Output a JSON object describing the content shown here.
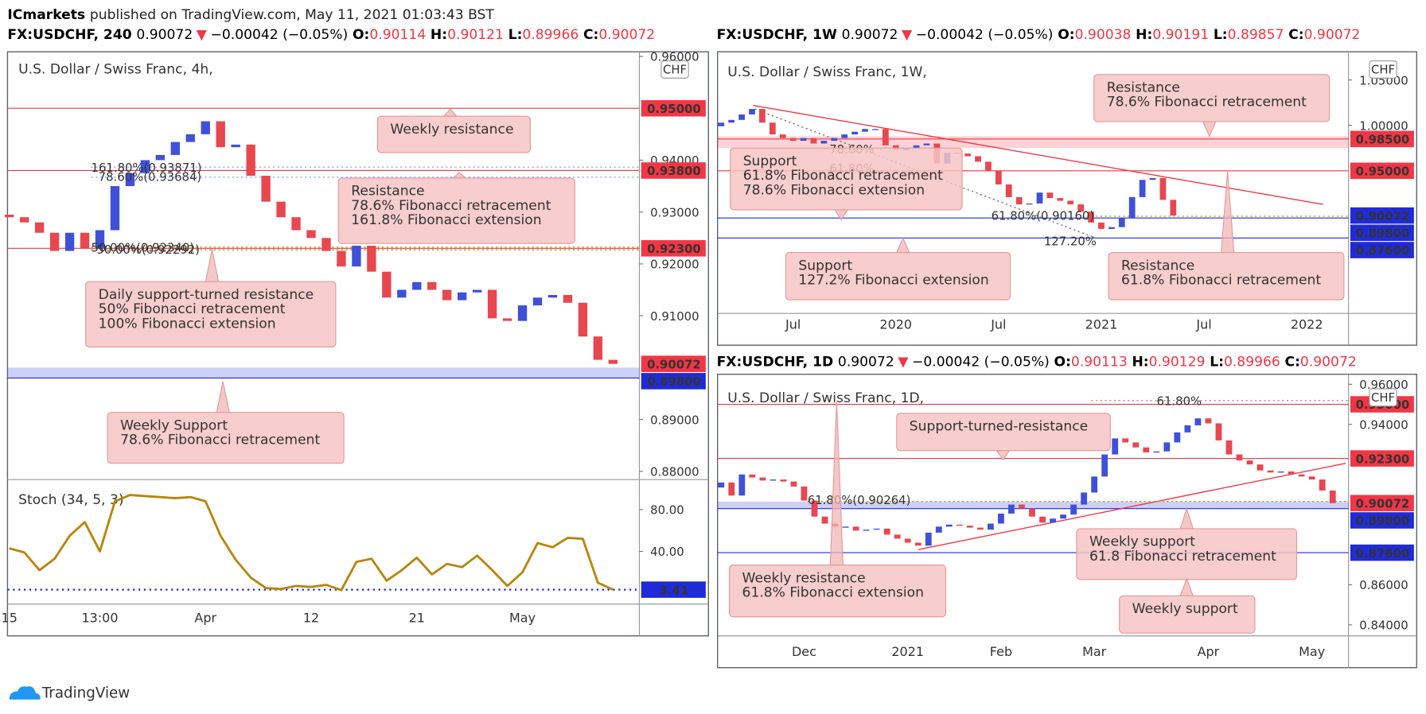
{
  "page": {
    "publisher": "ICmarkets",
    "published": "published on TradingView.com, May 11, 2021 01:03:43 BST",
    "logo": "TradingView"
  },
  "chart_data": [
    {
      "type": "candlestick",
      "header": {
        "symbol": "FX:USDCHF, 240",
        "last": "0.90072",
        "arrow": "▼",
        "change": "−0.00042 (−0.05%)",
        "ohlc": [
          {
            "key": "O:",
            "value": "0.90114"
          },
          {
            "key": "H:",
            "value": "0.90121"
          },
          {
            "key": "L:",
            "value": "0.89966"
          },
          {
            "key": "C:",
            "value": "0.90072"
          }
        ]
      },
      "title": "U.S. Dollar / Swiss Franc, 4h,",
      "currency": "CHF",
      "categories": [
        "15",
        null,
        null,
        null,
        null,
        null,
        "13:00",
        null,
        null,
        null,
        null,
        null,
        null,
        "Apr",
        null,
        null,
        null,
        null,
        null,
        null,
        "12",
        null,
        null,
        null,
        null,
        null,
        null,
        "21",
        null,
        null,
        null,
        null,
        null,
        null,
        "May",
        null,
        null,
        null,
        null,
        null,
        null
      ],
      "open": [
        0.9295,
        0.929,
        0.928,
        0.926,
        0.9225,
        0.926,
        0.923,
        0.9265,
        0.935,
        0.9375,
        0.94,
        0.941,
        0.9435,
        0.945,
        0.9475,
        0.9425,
        0.943,
        0.937,
        0.932,
        0.929,
        0.9265,
        0.925,
        0.9225,
        0.9195,
        0.9235,
        0.9185,
        0.9135,
        0.915,
        0.9165,
        0.915,
        0.913,
        0.9145,
        0.915,
        0.9095,
        0.909,
        0.912,
        0.9135,
        0.914,
        0.9125,
        0.906,
        0.9015
      ],
      "close": [
        0.929,
        0.928,
        0.926,
        0.9225,
        0.926,
        0.923,
        0.9265,
        0.935,
        0.9375,
        0.94,
        0.941,
        0.9435,
        0.945,
        0.9475,
        0.9425,
        0.943,
        0.937,
        0.932,
        0.929,
        0.9265,
        0.925,
        0.9225,
        0.9195,
        0.9235,
        0.9185,
        0.9135,
        0.915,
        0.9165,
        0.915,
        0.913,
        0.9145,
        0.915,
        0.9095,
        0.909,
        0.912,
        0.9135,
        0.914,
        0.9125,
        0.906,
        0.9015,
        0.90072
      ],
      "up_color": "#3f51d8",
      "down_color": "#e8474f",
      "ylim": [
        0.8784,
        0.9609
      ],
      "yticks": [
        {
          "value": 0.96,
          "label": "0.96000"
        },
        {
          "value": 0.94,
          "label": "0.94000"
        },
        {
          "value": 0.93,
          "label": "0.93000"
        },
        {
          "value": 0.92,
          "label": "0.92000"
        },
        {
          "value": 0.91,
          "label": "0.91000"
        },
        {
          "value": 0.89,
          "label": "0.89000"
        },
        {
          "value": 0.88,
          "label": "0.88000"
        }
      ],
      "zones": [
        {
          "from": 0.898,
          "to": 0.9,
          "color": "rgba(90,100,240,0.3)"
        }
      ],
      "levels": [
        {
          "value": 0.95,
          "label": "0.95000",
          "color": "#f23645",
          "line": "solid"
        },
        {
          "value": 0.938,
          "label": "0.93800",
          "color": "#f23645",
          "line": "solid"
        },
        {
          "value": 0.923,
          "label": "0.92300",
          "color": "#f23645",
          "line": "solid"
        },
        {
          "value": 0.90072,
          "label": "0.90072",
          "color": "#f23645",
          "line": "none"
        },
        {
          "value": 0.898,
          "label": "0.89800",
          "color": "#1f2bd6",
          "line": "solid"
        }
      ],
      "fib_labels": [
        {
          "text": "161.80%(0.93871)",
          "color": "#2962ff"
        },
        {
          "text": "78.60%(0.93684)",
          "color": "#2962ff"
        },
        {
          "text": "50.00%(0.92340)",
          "color": "#d4a017"
        },
        {
          "text": "50.00%(0.92292)",
          "color": "#b0901a"
        }
      ],
      "callouts": [
        {
          "lines": [
            "Weekly resistance"
          ]
        },
        {
          "lines": [
            "Resistance",
            "78.6% Fibonacci retracement",
            "161.8% Fibonacci extension"
          ]
        },
        {
          "lines": [
            "Daily support-turned resistance",
            "50% Fibonacci retracement",
            "100% Fibonacci extension"
          ]
        },
        {
          "lines": [
            "Weekly Support",
            "78.6% Fibonacci retracement"
          ]
        }
      ]
    },
    {
      "type": "line",
      "title": "Stoch (34, 5, 3)",
      "color": "#b8860b",
      "values": [
        43,
        39,
        22,
        33,
        55,
        68,
        40,
        88,
        94,
        93,
        92,
        91,
        92,
        88,
        55,
        32,
        15,
        5,
        4,
        7,
        6,
        8,
        3,
        30,
        33,
        12,
        22,
        34,
        18,
        28,
        25,
        36,
        22,
        7,
        20,
        48,
        44,
        53,
        52,
        10,
        3.41
      ],
      "ylim": [
        -10.4,
        108.7
      ],
      "yticks": [
        {
          "value": 80,
          "label": "80.00"
        },
        {
          "value": 40,
          "label": "40.00"
        }
      ],
      "levels": [
        {
          "value": 3.41,
          "color": "#1f2bd6",
          "line": "dotted"
        }
      ]
    },
    {
      "type": "candlestick",
      "header": {
        "symbol": "FX:USDCHF, 1W",
        "last": "0.90072",
        "arrow": "▼",
        "change": "−0.00042 (−0.05%)",
        "ohlc": [
          {
            "key": "O:",
            "value": "0.90038"
          },
          {
            "key": "H:",
            "value": "0.90191"
          },
          {
            "key": "L:",
            "value": "0.89857"
          },
          {
            "key": "C:",
            "value": "0.90072"
          }
        ]
      },
      "title": "U.S. Dollar / Swiss Franc, 1W,",
      "currency": "CHF",
      "categories": [
        null,
        null,
        null,
        null,
        null,
        null,
        null,
        "Jul",
        null,
        null,
        null,
        null,
        null,
        null,
        null,
        null,
        null,
        "2020",
        null,
        null,
        null,
        null,
        null,
        null,
        null,
        null,
        null,
        "Jul",
        null,
        null,
        null,
        null,
        null,
        null,
        null,
        null,
        null,
        "2021",
        null,
        null,
        null,
        null,
        null,
        null,
        null,
        null,
        null,
        "Jul",
        null,
        null,
        null,
        null,
        null,
        null,
        null,
        null,
        null,
        "2022",
        null,
        null
      ],
      "open": [
        0.999,
        1.003,
        1.006,
        1.012,
        1.018,
        1.003,
        0.99,
        0.986,
        0.983,
        0.986,
        0.98,
        0.983,
        0.986,
        0.99,
        0.993,
        0.996,
        0.996,
        0.978,
        0.973,
        0.975,
        0.978,
        0.98,
        0.958,
        0.97,
        0.969,
        0.966,
        0.96,
        0.95,
        0.935,
        0.921,
        0.913,
        0.914,
        0.926,
        0.92,
        0.917,
        0.913,
        0.905,
        0.893,
        0.886,
        0.888,
        0.898,
        0.921,
        0.94,
        0.942,
        0.918,
        null,
        null,
        null,
        null,
        null,
        null,
        null,
        null,
        null,
        null,
        null,
        null,
        null,
        null,
        null
      ],
      "close": [
        1.003,
        1.006,
        1.012,
        1.018,
        1.003,
        0.99,
        0.986,
        0.983,
        0.986,
        0.98,
        0.983,
        0.986,
        0.99,
        0.993,
        0.996,
        0.996,
        0.978,
        0.973,
        0.975,
        0.978,
        0.98,
        0.958,
        0.97,
        0.969,
        0.966,
        0.96,
        0.95,
        0.935,
        0.921,
        0.913,
        0.914,
        0.926,
        0.92,
        0.917,
        0.913,
        0.905,
        0.893,
        0.886,
        0.888,
        0.898,
        0.921,
        0.94,
        0.942,
        0.918,
        0.90072,
        null,
        null,
        null,
        null,
        null,
        null,
        null,
        null,
        null,
        null,
        null,
        null,
        null,
        null,
        null
      ],
      "up_color": "#3f51d8",
      "down_color": "#e8474f",
      "ylim": [
        0.793,
        1.081
      ],
      "yticks": [
        {
          "value": 1.05,
          "label": "1.05000"
        },
        {
          "value": 1.0,
          "label": "1.00000"
        }
      ],
      "zones": [
        {
          "from": 0.975,
          "to": 0.988,
          "color": "rgba(242,54,69,0.22)"
        }
      ],
      "levels": [
        {
          "value": 0.985,
          "label": "0.98500",
          "color": "#f23645",
          "line": "solid"
        },
        {
          "value": 0.95,
          "label": "0.95000",
          "color": "#f23645",
          "line": "solid"
        },
        {
          "value": 0.90072,
          "label": "0.90072",
          "color": "#1f2bd6",
          "line": "none"
        },
        {
          "value": 0.898,
          "label": "0.89800",
          "color": "#1f2bd6",
          "line": "solid"
        },
        {
          "value": 0.876,
          "label": "0.87600",
          "color": "#1f2bd6",
          "line": "solid"
        }
      ],
      "fib_labels": [
        {
          "text": "78.60%",
          "color": "#2962ff"
        },
        {
          "text": "61.80%",
          "color": "#d4a017"
        },
        {
          "text": "61.80%(0.90160)",
          "color": "#d4a017"
        },
        {
          "text": "127.20%",
          "color": "#2424c8"
        }
      ],
      "callouts": [
        {
          "lines": [
            "Resistance",
            "78.6% Fibonacci retracement"
          ]
        },
        {
          "lines": [
            "Support",
            "61.8% Fibonacci retracement",
            "78.6% Fibonacci extension"
          ]
        },
        {
          "lines": [
            "Support",
            "127.2% Fibonacci extension"
          ]
        },
        {
          "lines": [
            "Resistance",
            "61.8% Fibonacci retracement"
          ]
        }
      ]
    },
    {
      "type": "candlestick",
      "header": {
        "symbol": "FX:USDCHF, 1D",
        "last": "0.90072",
        "arrow": "▼",
        "change": "−0.00042 (−0.05%)",
        "ohlc": [
          {
            "key": "O:",
            "value": "0.90113"
          },
          {
            "key": "H:",
            "value": "0.90129"
          },
          {
            "key": "L:",
            "value": "0.89966"
          },
          {
            "key": "C:",
            "value": "0.90072"
          }
        ]
      },
      "title": "U.S. Dollar / Swiss Franc, 1D,",
      "currency": "CHF",
      "categories": [
        null,
        null,
        null,
        null,
        null,
        null,
        null,
        null,
        "Dec",
        null,
        null,
        null,
        null,
        null,
        null,
        null,
        null,
        null,
        "2021",
        null,
        null,
        null,
        null,
        null,
        null,
        null,
        null,
        "Feb",
        null,
        null,
        null,
        null,
        null,
        null,
        null,
        null,
        "Mar",
        null,
        null,
        null,
        null,
        null,
        null,
        null,
        null,
        null,
        null,
        "Apr",
        null,
        null,
        null,
        null,
        null,
        null,
        null,
        null,
        null,
        "May",
        null,
        null
      ],
      "open": [
        0.9085,
        0.911,
        0.9045,
        0.915,
        0.9135,
        0.912,
        0.9125,
        0.9115,
        0.909,
        0.902,
        0.894,
        0.8905,
        0.889,
        0.889,
        0.887,
        0.8875,
        0.888,
        0.885,
        0.883,
        0.881,
        0.8795,
        0.886,
        0.889,
        0.89,
        0.8895,
        0.8885,
        0.8875,
        0.8905,
        0.8955,
        0.9,
        0.898,
        0.894,
        0.891,
        0.893,
        0.895,
        0.9,
        0.906,
        0.914,
        0.925,
        0.933,
        0.931,
        0.9285,
        0.926,
        0.9265,
        0.931,
        0.936,
        0.9395,
        0.943,
        0.9405,
        0.932,
        0.925,
        0.922,
        0.92,
        0.917,
        0.916,
        0.9165,
        0.915,
        0.914,
        0.9125,
        0.907
      ],
      "close": [
        0.911,
        0.9045,
        0.915,
        0.9135,
        0.912,
        0.9125,
        0.9115,
        0.909,
        0.902,
        0.894,
        0.8905,
        0.889,
        0.889,
        0.887,
        0.8875,
        0.888,
        0.885,
        0.883,
        0.881,
        0.8795,
        0.886,
        0.889,
        0.89,
        0.8895,
        0.8885,
        0.8875,
        0.8905,
        0.8955,
        0.9,
        0.898,
        0.894,
        0.891,
        0.893,
        0.895,
        0.9,
        0.906,
        0.914,
        0.925,
        0.933,
        0.931,
        0.9285,
        0.926,
        0.9265,
        0.931,
        0.936,
        0.9395,
        0.943,
        0.9405,
        0.932,
        0.925,
        0.922,
        0.92,
        0.917,
        0.916,
        0.9165,
        0.915,
        0.914,
        0.9125,
        0.907,
        0.90072
      ],
      "up_color": "#3f51d8",
      "down_color": "#e8474f",
      "ylim": [
        0.8345,
        0.965
      ],
      "yticks": [
        {
          "value": 0.96,
          "label": "0.96000"
        },
        {
          "value": 0.94,
          "label": "0.94000"
        },
        {
          "value": 0.86,
          "label": "0.86000"
        },
        {
          "value": 0.84,
          "label": "0.84000"
        }
      ],
      "zones": [
        {
          "from": 0.898,
          "to": 0.9015,
          "color": "rgba(90,100,240,0.3)"
        }
      ],
      "levels": [
        {
          "value": 0.95,
          "label": "0.95000",
          "color": "#f23645",
          "line": "solid"
        },
        {
          "value": 0.923,
          "label": "0.92300",
          "color": "#f23645",
          "line": "solid"
        },
        {
          "value": 0.90072,
          "label": "0.90072",
          "color": "#f23645",
          "line": "none"
        },
        {
          "value": 0.898,
          "label": "0.89800",
          "color": "#1f2bd6",
          "line": "solid"
        },
        {
          "value": 0.876,
          "label": "0.87600",
          "color": "#1f2bd6",
          "line": "solid"
        }
      ],
      "fib_labels": [
        {
          "text": "61.80%(0.90264)",
          "color": "#d4a017"
        },
        {
          "text": "61.80%",
          "color": "#2962ff"
        }
      ],
      "callouts": [
        {
          "lines": [
            "Support-turned-resistance"
          ]
        },
        {
          "lines": [
            "Weekly support",
            "61.8 Fibonacci retracement"
          ]
        },
        {
          "lines": [
            "Weekly resistance",
            "61.8% Fibonacci extension"
          ]
        },
        {
          "lines": [
            "Weekly support"
          ]
        }
      ]
    }
  ]
}
